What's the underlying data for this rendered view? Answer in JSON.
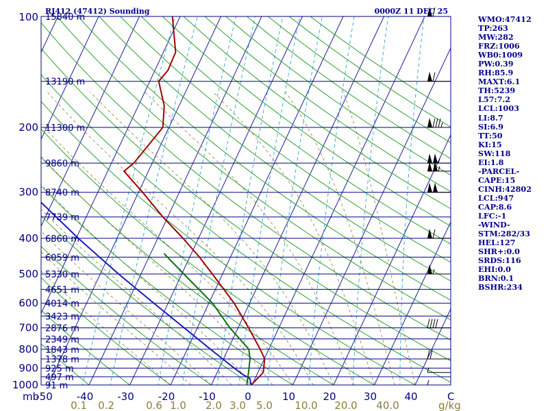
{
  "header": {
    "left_title": "RJ412 (47412) Sounding",
    "right_title": "0000Z 11 DEC 25"
  },
  "indices": [
    "WMO:47412",
    "TP:263",
    "MW:282",
    "FRZ:1006",
    "WB0:1009",
    "PW:0.39",
    "RH:85.9",
    "MAXT:6.1",
    "TH:5239",
    "L57:7.2",
    "LCL:1003",
    "LI:8.7",
    "SI:6.9",
    "TT:50",
    "KI:15",
    "SW:118",
    "EI:1.8",
    "-PARCEL-",
    "CAPE:15",
    "CINH:42802",
    "LCL:947",
    "CAP:8.6",
    "LFC:-1",
    "-WIND-",
    "STM:282/33",
    "HEL:127",
    "SHR+:0.0",
    "SRDS:116",
    "EHI:0.0",
    "BRN:0.1",
    "BSHR:234"
  ],
  "chart_data": {
    "type": "line",
    "diagram": "skew-T log-P",
    "pressure_unit_label": "mb",
    "mixing_ratio_unit_label": "g/kg",
    "pressure_labels": [
      {
        "p": 100,
        "label": "100"
      },
      {
        "p": 200,
        "label": "200"
      },
      {
        "p": 300,
        "label": "300"
      },
      {
        "p": 400,
        "label": "400"
      },
      {
        "p": 500,
        "label": "500"
      },
      {
        "p": 600,
        "label": "600"
      },
      {
        "p": 700,
        "label": "700"
      },
      {
        "p": 800,
        "label": "800"
      },
      {
        "p": 900,
        "label": "900"
      },
      {
        "p": 1000,
        "label": "1000"
      }
    ],
    "height_levels": [
      {
        "p": 100,
        "label": "15840 m"
      },
      {
        "p": 150,
        "label": "13190 m"
      },
      {
        "p": 200,
        "label": "11300 m"
      },
      {
        "p": 250,
        "label": "9860 m"
      },
      {
        "p": 300,
        "label": "8740 m"
      },
      {
        "p": 350,
        "label": "7739 m"
      },
      {
        "p": 400,
        "label": "6860 m"
      },
      {
        "p": 450,
        "label": "6059 m"
      },
      {
        "p": 500,
        "label": "5330 m"
      },
      {
        "p": 550,
        "label": "4651 m"
      },
      {
        "p": 600,
        "label": "4014 m"
      },
      {
        "p": 650,
        "label": "3423 m"
      },
      {
        "p": 700,
        "label": "2876 m"
      },
      {
        "p": 750,
        "label": "2349 m"
      },
      {
        "p": 800,
        "label": "1843 m"
      },
      {
        "p": 850,
        "label": "1378 m"
      },
      {
        "p": 900,
        "label": "925 m"
      },
      {
        "p": 950,
        "label": "497 m"
      },
      {
        "p": 1000,
        "label": "91 m"
      }
    ],
    "temperature_ticks": [
      {
        "t": -50,
        "label": "-50"
      },
      {
        "t": -40,
        "label": "-40"
      },
      {
        "t": -30,
        "label": "-30"
      },
      {
        "t": -20,
        "label": "-20"
      },
      {
        "t": -10,
        "label": "-10"
      },
      {
        "t": 0,
        "label": "0"
      },
      {
        "t": 10,
        "label": "10"
      },
      {
        "t": 20,
        "label": "20"
      },
      {
        "t": 30,
        "label": "30"
      },
      {
        "t": 40,
        "label": "40"
      }
    ],
    "mixing_ratio_labels": [
      "0.1",
      "0.2",
      "0.6",
      "1.0",
      "2.0",
      "3.0",
      "5.0",
      "10.0",
      "20.0",
      "40.0"
    ],
    "temperature_profile": [
      {
        "p": 1000,
        "t": -0.2
      },
      {
        "p": 925,
        "t": 1.3
      },
      {
        "p": 850,
        "t": 0.1
      },
      {
        "p": 800,
        "t": -2.1
      },
      {
        "p": 700,
        "t": -7.4
      },
      {
        "p": 600,
        "t": -13.8
      },
      {
        "p": 500,
        "t": -22.5
      },
      {
        "p": 450,
        "t": -27.6
      },
      {
        "p": 400,
        "t": -33.8
      },
      {
        "p": 350,
        "t": -41.2
      },
      {
        "p": 300,
        "t": -49.0
      },
      {
        "p": 263,
        "t": -56.0
      },
      {
        "p": 250,
        "t": -54.5
      },
      {
        "p": 200,
        "t": -51.5
      },
      {
        "p": 175,
        "t": -53.6
      },
      {
        "p": 150,
        "t": -57.8
      },
      {
        "p": 140,
        "t": -56.8
      },
      {
        "p": 125,
        "t": -57.0
      },
      {
        "p": 100,
        "t": -61.9
      }
    ],
    "dewpoint_profile": [
      {
        "p": 1000,
        "t": -1.3
      },
      {
        "p": 925,
        "t": -2.3
      },
      {
        "p": 850,
        "t": -3.5
      },
      {
        "p": 800,
        "t": -4.9
      },
      {
        "p": 700,
        "t": -12.0
      },
      {
        "p": 600,
        "t": -19.1
      },
      {
        "p": 500,
        "t": -29.5
      },
      {
        "p": 440,
        "t": -36.7
      }
    ],
    "parcel_profile": [
      {
        "p": 1000,
        "t": -0.2
      },
      {
        "p": 960,
        "t": -1.3
      },
      {
        "p": 940,
        "t": -3.2
      },
      {
        "p": 900,
        "t": -6.3
      },
      {
        "p": 850,
        "t": -10.2
      },
      {
        "p": 800,
        "t": -14.3
      },
      {
        "p": 700,
        "t": -23.2
      },
      {
        "p": 600,
        "t": -33.5
      },
      {
        "p": 500,
        "t": -45.5
      },
      {
        "p": 400,
        "t": -59.5
      },
      {
        "p": 300,
        "t": -76.5
      },
      {
        "p": 250,
        "t": -85.5
      },
      {
        "p": 200,
        "t": -95.5
      },
      {
        "p": 150,
        "t": -108.0
      },
      {
        "p": 112,
        "t": -121.0
      }
    ],
    "wind_barbs": [
      {
        "p": 100,
        "dir": 280,
        "kt": 60
      },
      {
        "p": 150,
        "dir": 285,
        "kt": 60
      },
      {
        "p": 200,
        "dir": 270,
        "kt": 85
      },
      {
        "p": 250,
        "dir": 270,
        "kt": 105
      },
      {
        "p": 263,
        "dir": 272,
        "kt": 105
      },
      {
        "p": 300,
        "dir": 268,
        "kt": 100
      },
      {
        "p": 400,
        "dir": 265,
        "kt": 60
      },
      {
        "p": 500,
        "dir": 260,
        "kt": 55
      },
      {
        "p": 700,
        "dir": 285,
        "kt": 40
      },
      {
        "p": 850,
        "dir": 300,
        "kt": 20
      },
      {
        "p": 925,
        "dir": 330,
        "kt": 5
      },
      {
        "p": 1000,
        "dir": 340,
        "kt": 5
      }
    ]
  }
}
